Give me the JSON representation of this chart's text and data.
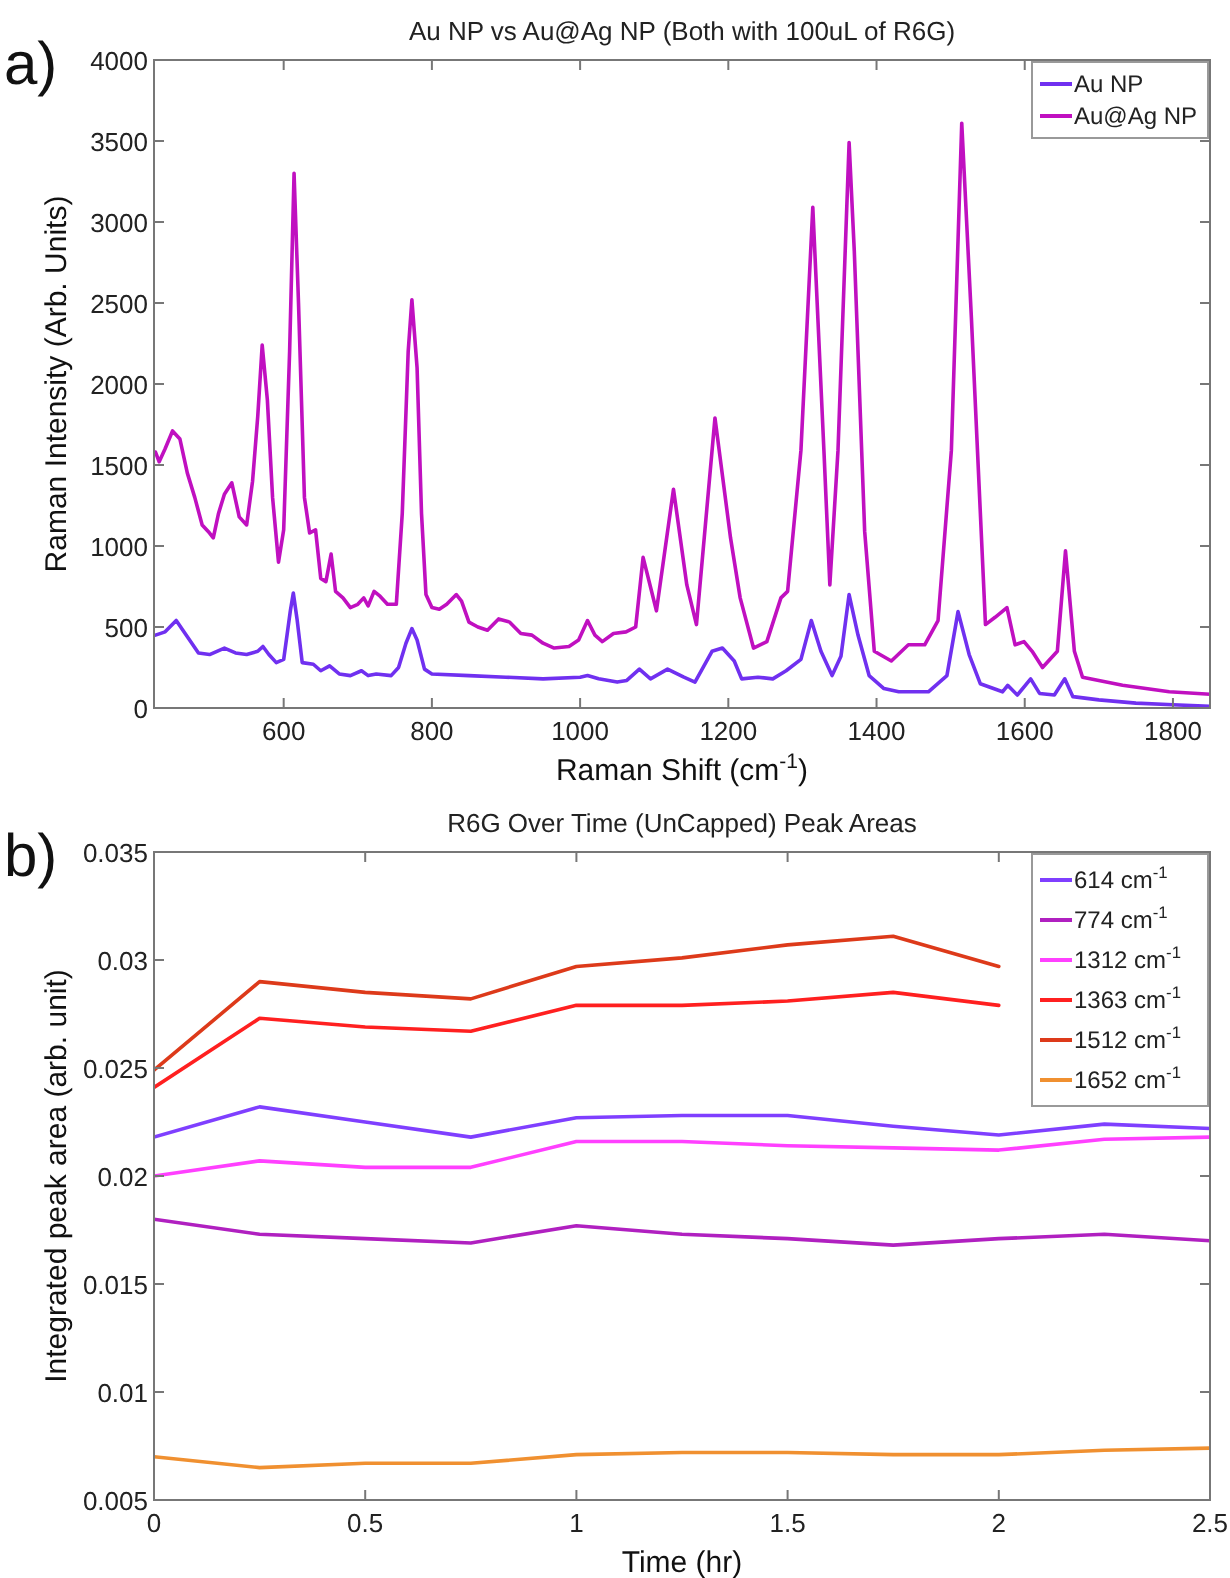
{
  "chart_data": [
    {
      "type": "line",
      "title": "Au NP vs Au@Ag NP (Both with 100uL of R6G)",
      "xlabel": "Raman Shift (cm$^{-1}$)",
      "ylabel": "Raman Intensity (Arb. Units)",
      "annotations": [
        "a)"
      ],
      "xlim": [
        425,
        1850
      ],
      "ylim": [
        0,
        4000
      ],
      "xticks": [
        600,
        800,
        1000,
        1200,
        1400,
        1600,
        1800
      ],
      "yticks": [
        0,
        500,
        1000,
        1500,
        2000,
        2500,
        3000,
        3500,
        4000
      ],
      "grid": false,
      "legend": "top right",
      "line_style": "solid",
      "series": [
        {
          "name": "Au NP",
          "color": "#7030f0",
          "x": [
            427,
            440,
            455,
            470,
            485,
            500,
            520,
            535,
            550,
            565,
            572,
            580,
            590,
            600,
            609,
            613,
            618,
            625,
            640,
            650,
            662,
            675,
            690,
            705,
            714,
            725,
            745,
            755,
            765,
            773,
            780,
            790,
            800,
            850,
            900,
            950,
            1000,
            1010,
            1025,
            1050,
            1063,
            1080,
            1095,
            1118,
            1140,
            1155,
            1178,
            1192,
            1208,
            1218,
            1240,
            1260,
            1278,
            1298,
            1312,
            1325,
            1340,
            1352,
            1363,
            1375,
            1390,
            1410,
            1430,
            1470,
            1495,
            1510,
            1525,
            1540,
            1570,
            1577,
            1590,
            1608,
            1620,
            1640,
            1654,
            1665,
            1700,
            1750,
            1800,
            1850
          ],
          "values": [
            450,
            470,
            540,
            440,
            340,
            330,
            370,
            340,
            330,
            350,
            380,
            330,
            280,
            300,
            600,
            710,
            550,
            280,
            270,
            230,
            260,
            210,
            200,
            230,
            200,
            210,
            200,
            250,
            400,
            490,
            420,
            240,
            210,
            200,
            190,
            180,
            190,
            200,
            180,
            160,
            170,
            240,
            180,
            240,
            190,
            160,
            350,
            370,
            290,
            180,
            190,
            180,
            230,
            300,
            540,
            350,
            200,
            320,
            700,
            450,
            200,
            120,
            100,
            100,
            200,
            595,
            330,
            150,
            100,
            140,
            80,
            180,
            90,
            80,
            180,
            70,
            50,
            30,
            20,
            10
          ]
        },
        {
          "name": "Au@Ag NP",
          "color": "#c010c0",
          "x": [
            427,
            432,
            440,
            450,
            460,
            470,
            480,
            490,
            500,
            505,
            512,
            520,
            530,
            540,
            550,
            558,
            565,
            571,
            578,
            585,
            593,
            600,
            608,
            614,
            620,
            628,
            635,
            643,
            650,
            657,
            664,
            670,
            680,
            690,
            700,
            708,
            714,
            722,
            730,
            740,
            752,
            760,
            768,
            773,
            780,
            786,
            792,
            800,
            810,
            820,
            833,
            840,
            850,
            862,
            875,
            890,
            905,
            920,
            935,
            950,
            965,
            985,
            998,
            1010,
            1020,
            1030,
            1045,
            1062,
            1075,
            1085,
            1103,
            1126,
            1144,
            1157,
            1182,
            1203,
            1216,
            1234,
            1252,
            1271,
            1280,
            1298,
            1314,
            1329,
            1337,
            1348,
            1363,
            1370,
            1384,
            1397,
            1420,
            1443,
            1465,
            1483,
            1501,
            1515,
            1528,
            1547,
            1560,
            1576,
            1587,
            1599,
            1610,
            1624,
            1644,
            1655,
            1667,
            1678,
            1732,
            1795,
            1850
          ],
          "values": [
            1580,
            1520,
            1600,
            1710,
            1660,
            1450,
            1300,
            1130,
            1080,
            1050,
            1200,
            1320,
            1390,
            1180,
            1130,
            1400,
            1800,
            2240,
            1900,
            1300,
            900,
            1100,
            2200,
            3300,
            2500,
            1300,
            1080,
            1100,
            800,
            780,
            950,
            720,
            680,
            620,
            640,
            680,
            630,
            720,
            690,
            640,
            640,
            1200,
            2200,
            2520,
            2100,
            1200,
            700,
            620,
            610,
            640,
            700,
            660,
            530,
            500,
            480,
            550,
            530,
            460,
            450,
            400,
            370,
            380,
            420,
            540,
            450,
            410,
            460,
            470,
            500,
            930,
            600,
            1350,
            760,
            515,
            1790,
            1050,
            680,
            370,
            410,
            680,
            720,
            1590,
            3090,
            1590,
            760,
            1590,
            3490,
            2820,
            1090,
            350,
            290,
            390,
            390,
            540,
            1590,
            3610,
            2410,
            515,
            560,
            620,
            390,
            410,
            350,
            250,
            350,
            970,
            350,
            190,
            140,
            100,
            85
          ]
        }
      ]
    },
    {
      "type": "line",
      "title": "R6G Over Time (UnCapped) Peak Areas",
      "xlabel": "Time (hr)",
      "ylabel": "Integrated peak area (arb. unit)",
      "annotations": [
        "b)"
      ],
      "xlim": [
        0,
        2.5
      ],
      "ylim": [
        0.005,
        0.035
      ],
      "xticks": [
        0,
        0.5,
        1,
        1.5,
        2,
        2.5
      ],
      "yticks": [
        0.005,
        0.01,
        0.015,
        0.02,
        0.025,
        0.03,
        0.035
      ],
      "grid": false,
      "legend": "top right",
      "line_style": "solid",
      "x": [
        0,
        0.25,
        0.5,
        0.75,
        1,
        1.25,
        1.5,
        1.75,
        2,
        2.25,
        2.5
      ],
      "series": [
        {
          "name": "614 cm$^{-1}$",
          "color": "#7f3fff",
          "values": [
            0.0218,
            0.0232,
            0.0225,
            0.0218,
            0.0227,
            0.0228,
            0.0228,
            0.0223,
            0.0219,
            0.0224,
            0.0222
          ]
        },
        {
          "name": "774 cm$^{-1}$",
          "color": "#b020c0",
          "values": [
            0.018,
            0.0173,
            0.0171,
            0.0169,
            0.0177,
            0.0173,
            0.0171,
            0.0168,
            0.0171,
            0.0173,
            0.017
          ]
        },
        {
          "name": "1312 cm$^{-1}$",
          "color": "#ff40ff",
          "values": [
            0.02,
            0.0207,
            0.0204,
            0.0204,
            0.0216,
            0.0216,
            0.0214,
            0.0213,
            0.0212,
            0.0217,
            0.0218
          ]
        },
        {
          "name": "1363 cm$^{-1}$",
          "color": "#ff2020",
          "values": [
            0.0241,
            0.0273,
            0.0269,
            0.0267,
            0.0279,
            0.0279,
            0.0281,
            0.0285,
            0.0279,
            null,
            null
          ]
        },
        {
          "name": "1512 cm$^{-1}$",
          "color": "#dd3a1a",
          "values": [
            0.0249,
            0.029,
            0.0285,
            0.0282,
            0.0297,
            0.0301,
            0.0307,
            0.0311,
            0.0297,
            null,
            null
          ]
        },
        {
          "name": "1652 cm$^{-1}$",
          "color": "#f09030",
          "values": [
            0.007,
            0.0065,
            0.0067,
            0.0067,
            0.0071,
            0.0072,
            0.0072,
            0.0071,
            0.0071,
            0.0073,
            0.0074
          ]
        }
      ]
    }
  ]
}
